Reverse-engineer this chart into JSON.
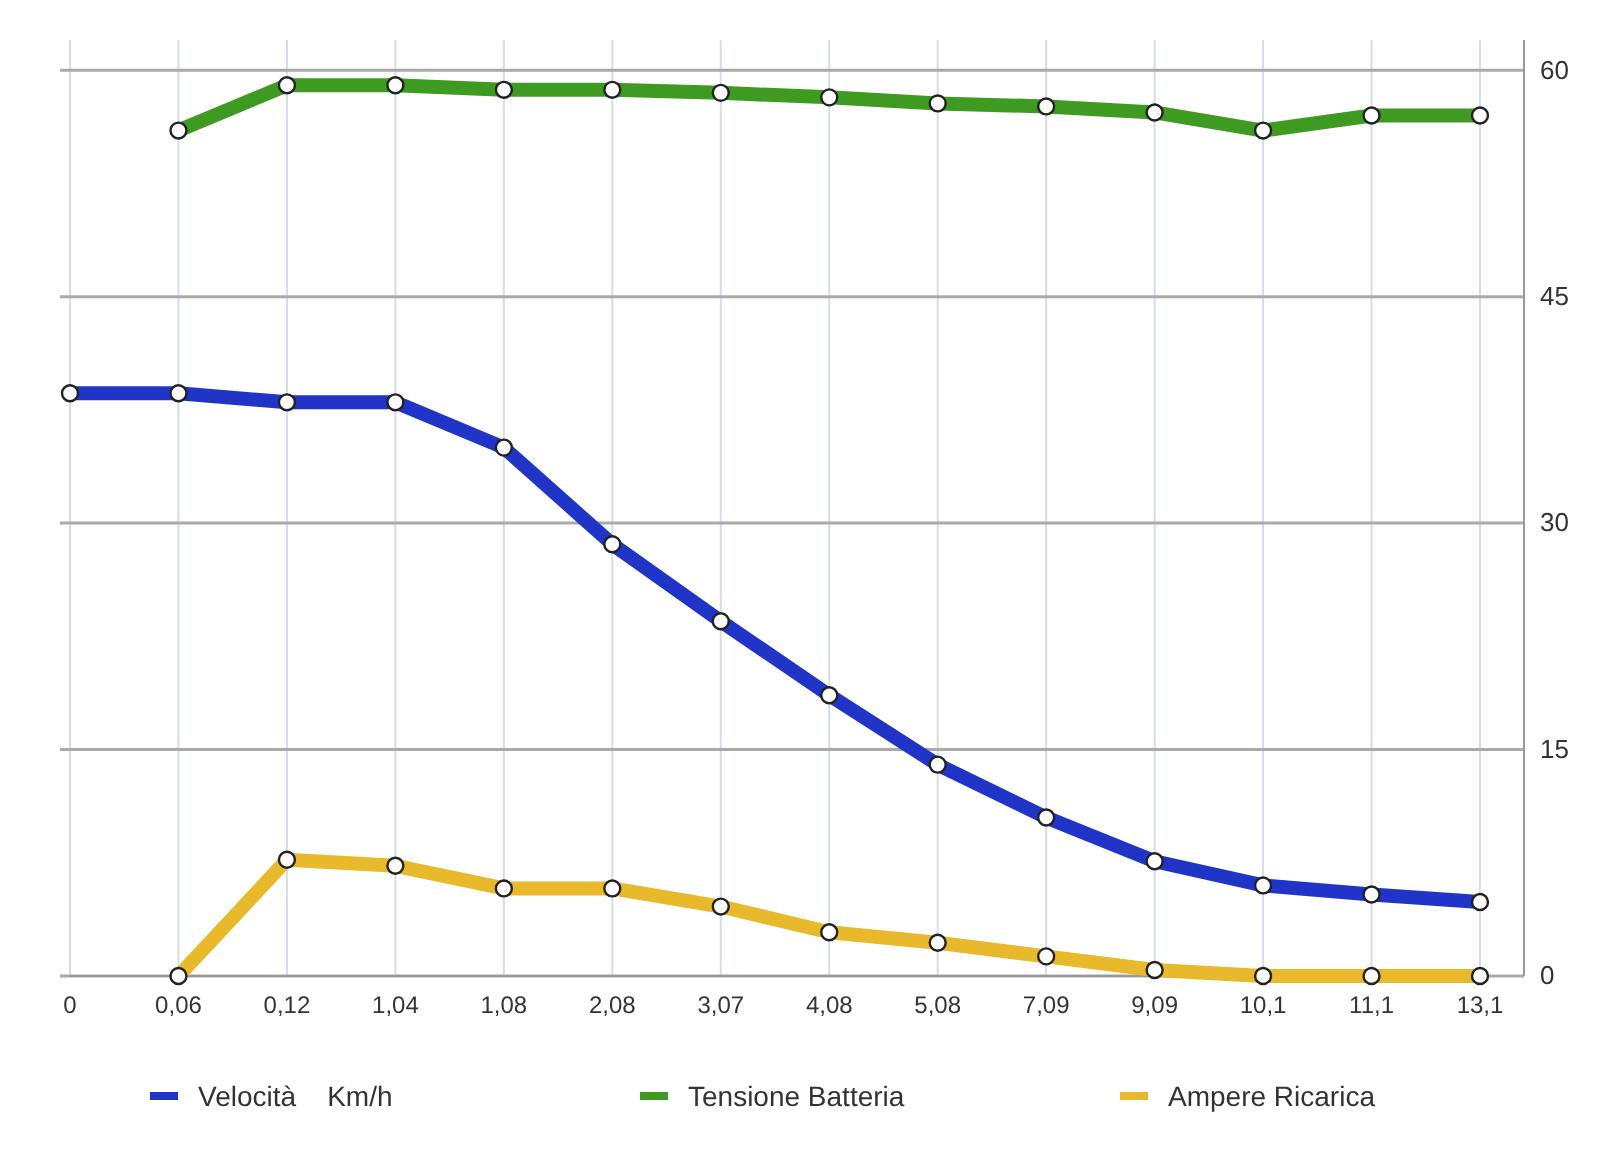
{
  "chart_data": {
    "type": "line",
    "categories": [
      "0",
      "0,06",
      "0,12",
      "1,04",
      "1,08",
      "2,08",
      "3,07",
      "4,08",
      "5,08",
      "7,09",
      "9,09",
      "10,1",
      "11,1",
      "13,1"
    ],
    "series": [
      {
        "name": "Velocità    Km/h",
        "color": "#2035c8",
        "values": [
          38.6,
          38.6,
          38,
          38,
          35,
          28.6,
          23.5,
          18.6,
          14,
          10.5,
          7.6,
          6,
          5.4,
          4.9
        ]
      },
      {
        "name": "Tensione Batteria",
        "color": "#3f9a22",
        "values": [
          null,
          56,
          59,
          59,
          58.7,
          58.7,
          58.5,
          58.2,
          57.8,
          57.6,
          57.2,
          56,
          57,
          57
        ]
      },
      {
        "name": "Ampere Ricarica",
        "color": "#e8b92a",
        "values": [
          null,
          0,
          7.7,
          7.3,
          5.8,
          5.8,
          4.6,
          2.9,
          2.2,
          1.3,
          0.4,
          0,
          0,
          0
        ]
      }
    ],
    "ylim": [
      0,
      62
    ],
    "yticks": [
      0,
      15,
      30,
      45,
      60
    ],
    "grid": true,
    "legend": "bottom",
    "marker": "circle",
    "line_style": "solid"
  }
}
